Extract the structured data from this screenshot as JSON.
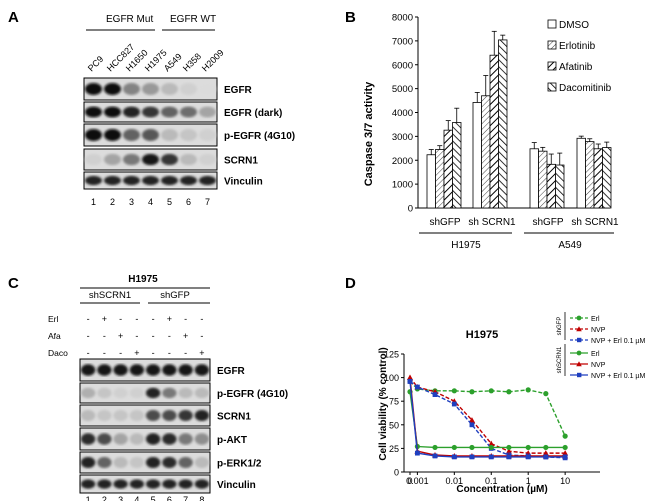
{
  "panels": {
    "A": {
      "letter": "A",
      "group_mut": "EGFR  Mut",
      "group_wt": "EGFR  WT",
      "cell_lines": [
        "PC9",
        "HCC827",
        "H1650",
        "H1975",
        "A549",
        "H358",
        "H2009"
      ],
      "lane_numbers": [
        "1",
        "2",
        "3",
        "4",
        "5",
        "6",
        "7"
      ],
      "blots": [
        "EGFR",
        "EGFR (dark)",
        "p-EGFR (4G10)",
        "SCRN1",
        "Vinculin"
      ]
    },
    "B": {
      "letter": "B",
      "chart_data": {
        "type": "bar",
        "ylabel": "Caspase  3/7 activity",
        "ylim": [
          0,
          8000
        ],
        "yticks": [
          "0",
          "1000",
          "2000",
          "3000",
          "4000",
          "5000",
          "6000",
          "7000",
          "8000"
        ],
        "categories": [
          "shGFP",
          "sh SCRN1",
          "shGFP",
          "sh SCRN1"
        ],
        "cell_groups": [
          "H1975",
          "A549"
        ],
        "legend": [
          "DMSO",
          "Erlotinib",
          "Afatinib",
          "Dacomitinib"
        ],
        "series": [
          {
            "name": "DMSO",
            "values": [
              2230,
              4420,
              2480,
              2920
            ],
            "errors": [
              220,
              420,
              260,
              90
            ]
          },
          {
            "name": "Erlotinib",
            "values": [
              2450,
              4700,
              2380,
              2780
            ],
            "errors": [
              160,
              850,
              160,
              120
            ]
          },
          {
            "name": "Afatinib",
            "values": [
              3260,
              6400,
              1830,
              2480
            ],
            "errors": [
              400,
              1000,
              430,
              200
            ]
          },
          {
            "name": "Dacomitinib",
            "values": [
              3580,
              7040,
              1800,
              2530
            ],
            "errors": [
              600,
              200,
              500,
              230
            ]
          }
        ]
      }
    },
    "C": {
      "letter": "C",
      "cell_line": "H1975",
      "groups": [
        "shSCRN1",
        "shGFP"
      ],
      "treatments": [
        {
          "label": "Erl",
          "signs": [
            "-",
            "+",
            "-",
            "-",
            "-",
            "+",
            "-",
            "-"
          ]
        },
        {
          "label": "Afa",
          "signs": [
            "-",
            "-",
            "+",
            "-",
            "-",
            "-",
            "+",
            "-"
          ]
        },
        {
          "label": "Daco",
          "signs": [
            "-",
            "-",
            "-",
            "+",
            "-",
            "-",
            "-",
            "+"
          ]
        }
      ],
      "blots": [
        "EGFR",
        "p-EGFR (4G10)",
        "SCRN1",
        "p-AKT",
        "p-ERK1/2",
        "Vinculin"
      ],
      "lane_numbers": [
        "1",
        "2",
        "3",
        "4",
        "5",
        "6",
        "7",
        "8"
      ]
    },
    "D": {
      "letter": "D",
      "chart_data": {
        "type": "line",
        "title": "H1975",
        "ylabel": "Cell viability (% control)",
        "xlabel": "Concentration (µM)",
        "ylim": [
          0,
          125
        ],
        "yticks": [
          "0",
          "25",
          "50",
          "75",
          "100",
          "125"
        ],
        "xticks": [
          "0",
          "0.001",
          "0.01",
          "0.1",
          "1",
          "10"
        ],
        "legend_groups": [
          "shGFP",
          "shSCRN1"
        ],
        "series": [
          {
            "name": "Erl",
            "group": "shGFP",
            "color": "#2ca02c",
            "dash": true,
            "marker": "circle",
            "x": [
              0,
              0.001,
              0.003,
              0.01,
              0.03,
              0.1,
              0.3,
              1,
              3,
              10
            ],
            "y": [
              96,
              88,
              86,
              86,
              85,
              86,
              85,
              87,
              83,
              38
            ]
          },
          {
            "name": "NVP",
            "group": "shGFP",
            "color": "#c00000",
            "dash": true,
            "marker": "triangle",
            "x": [
              0,
              0.001,
              0.003,
              0.01,
              0.03,
              0.1,
              0.3,
              1,
              3,
              10
            ],
            "y": [
              100,
              90,
              85,
              75,
              55,
              30,
              22,
              20,
              20,
              20
            ]
          },
          {
            "name": "NVP + Erl 0.1 µM",
            "group": "shGFP",
            "color": "#1f3fbf",
            "dash": true,
            "marker": "square",
            "x": [
              0,
              0.001,
              0.003,
              0.01,
              0.03,
              0.1,
              0.3,
              1,
              3,
              10
            ],
            "y": [
              96,
              90,
              82,
              72,
              50,
              25,
              18,
              17,
              16,
              15
            ]
          },
          {
            "name": "Erl",
            "group": "shSCRN1",
            "color": "#2ca02c",
            "dash": false,
            "marker": "circle",
            "x": [
              0,
              0.001,
              0.003,
              0.01,
              0.03,
              0.1,
              0.3,
              1,
              3,
              10
            ],
            "y": [
              85,
              27,
              26,
              26,
              26,
              26,
              26,
              26,
              26,
              26
            ]
          },
          {
            "name": "NVP",
            "group": "shSCRN1",
            "color": "#c00000",
            "dash": false,
            "marker": "triangle",
            "x": [
              0,
              0.001,
              0.003,
              0.01,
              0.03,
              0.1,
              0.3,
              1,
              3,
              10
            ],
            "y": [
              100,
              22,
              18,
              17,
              17,
              17,
              17,
              17,
              17,
              17
            ]
          },
          {
            "name": "NVP + Erl 0.1 µM",
            "group": "shSCRN1",
            "color": "#1f3fbf",
            "dash": false,
            "marker": "square",
            "x": [
              0,
              0.001,
              0.003,
              0.01,
              0.03,
              0.1,
              0.3,
              1,
              3,
              10
            ],
            "y": [
              96,
              20,
              17,
              16,
              16,
              16,
              16,
              16,
              16,
              16
            ]
          }
        ]
      }
    }
  }
}
